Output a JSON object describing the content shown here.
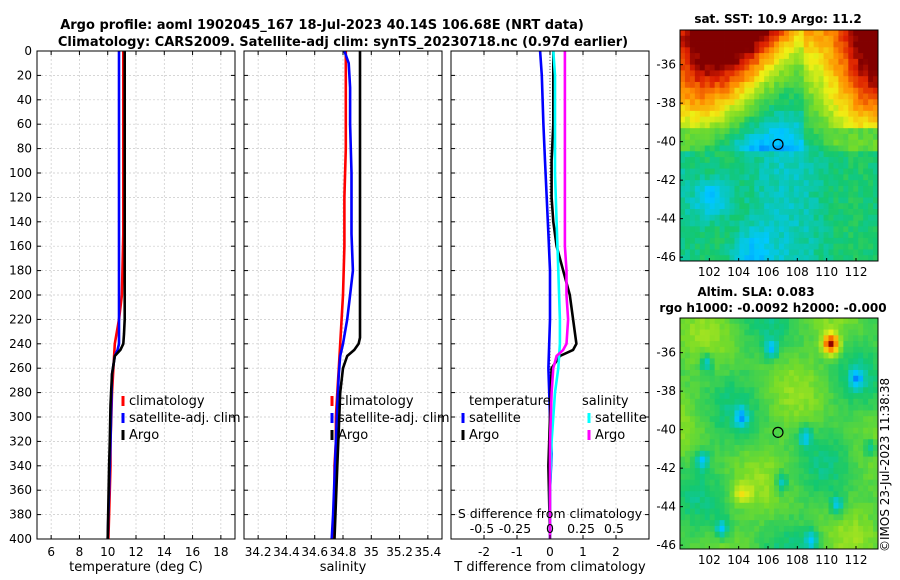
{
  "title_line1": "Argo profile: aoml 1902045_167 18-Jul-2023 40.14S 106.68E (NRT data)",
  "title_line2": "Climatology: CARS2009. Satellite-adj clim: synTS_20230718.nc (0.97d earlier)",
  "credit": "©IMOS 23-Jul-2023 11:38:38",
  "chart_data": [
    {
      "type": "line",
      "name": "temperature-profile",
      "xlabel": "temperature (deg C)",
      "xlim": [
        5,
        19
      ],
      "xticks": [
        6,
        8,
        10,
        12,
        14,
        16,
        18
      ],
      "xtick_labels": [
        "6",
        "8",
        "10",
        "12",
        "14",
        "16",
        "18"
      ],
      "ylim": [
        0,
        400
      ],
      "yticks": [
        0,
        20,
        40,
        60,
        80,
        100,
        120,
        140,
        160,
        180,
        200,
        220,
        240,
        260,
        280,
        300,
        320,
        340,
        360,
        380,
        400
      ],
      "ytick_labels": [
        "0",
        "20",
        "40",
        "60",
        "80",
        "100",
        "120",
        "140",
        "160",
        "180",
        "200",
        "220",
        "240",
        "260",
        "280",
        "300",
        "320",
        "340",
        "360",
        "380",
        "400"
      ],
      "y_reversed": true,
      "legend": [
        "climatology",
        "satellite-adj. clim",
        "Argo"
      ],
      "series": [
        {
          "name": "climatology",
          "color": "#ff0000",
          "x": [
            11.1,
            11.1,
            11.1,
            11.1,
            11.05,
            11.0,
            10.8,
            10.5,
            10.4,
            10.3,
            10.25,
            10.2,
            10.2,
            10.15,
            10.1,
            10.05
          ],
          "y": [
            0,
            50,
            100,
            150,
            175,
            200,
            220,
            240,
            260,
            280,
            300,
            320,
            340,
            360,
            380,
            400
          ]
        },
        {
          "name": "satellite-adj. clim",
          "color": "#0000ff",
          "x": [
            10.8,
            10.8,
            10.8,
            10.8,
            10.8,
            10.8,
            10.8,
            10.8,
            10.7,
            10.5,
            10.3,
            10.25,
            10.2,
            10.15,
            10.1,
            10.05,
            10.0
          ],
          "y": [
            0,
            50,
            100,
            150,
            180,
            200,
            220,
            240,
            245,
            250,
            265,
            290,
            320,
            340,
            360,
            380,
            400
          ]
        },
        {
          "name": "Argo",
          "color": "#000000",
          "x": [
            11.2,
            11.2,
            11.2,
            11.2,
            11.2,
            11.2,
            11.2,
            11.15,
            11.1,
            10.9,
            10.5,
            10.3,
            10.2,
            10.15,
            10.1,
            10.05,
            10.0
          ],
          "y": [
            0,
            50,
            100,
            150,
            180,
            200,
            220,
            232,
            240,
            245,
            250,
            265,
            290,
            320,
            340,
            370,
            400
          ]
        }
      ]
    },
    {
      "type": "line",
      "name": "salinity-profile",
      "xlabel": "salinity",
      "xlim": [
        34.1,
        35.5
      ],
      "xticks": [
        34.2,
        34.4,
        34.6,
        34.8,
        35.0,
        35.2,
        35.4
      ],
      "xtick_labels": [
        "34.2",
        "34.4",
        "34.6",
        "34.8",
        "35",
        "35.2",
        "35.4"
      ],
      "ylim": [
        0,
        400
      ],
      "y_reversed": true,
      "legend": [
        "climatology",
        "satellite-adj. clim",
        "Argo"
      ],
      "series": [
        {
          "name": "climatology",
          "color": "#ff0000",
          "x": [
            34.82,
            34.82,
            34.82,
            34.81,
            34.81,
            34.8,
            34.79,
            34.78,
            34.77,
            34.76,
            34.75,
            34.75,
            34.74,
            34.74,
            34.73
          ],
          "y": [
            0,
            40,
            80,
            120,
            160,
            200,
            220,
            240,
            260,
            280,
            300,
            320,
            340,
            360,
            400
          ]
        },
        {
          "name": "satellite-adj. clim",
          "color": "#0000ff",
          "x": [
            34.81,
            34.84,
            34.85,
            34.85,
            34.86,
            34.86,
            34.87,
            34.85,
            34.83,
            34.8,
            34.78,
            34.77,
            34.76,
            34.75,
            34.74,
            34.73,
            34.72
          ],
          "y": [
            0,
            10,
            30,
            60,
            100,
            150,
            180,
            200,
            220,
            240,
            250,
            265,
            290,
            320,
            350,
            380,
            400
          ]
        },
        {
          "name": "Argo",
          "color": "#000000",
          "x": [
            34.92,
            34.92,
            34.92,
            34.92,
            34.92,
            34.92,
            34.92,
            34.91,
            34.88,
            34.83,
            34.8,
            34.78,
            34.77,
            34.76,
            34.75,
            34.74
          ],
          "y": [
            0,
            50,
            100,
            150,
            200,
            220,
            235,
            240,
            245,
            250,
            260,
            280,
            310,
            340,
            370,
            400
          ]
        }
      ]
    },
    {
      "type": "line",
      "name": "difference-profile",
      "xlabel": "T difference from climatology",
      "xlabel_top": "S difference from climatology",
      "xlim": [
        -3,
        3
      ],
      "xticks": [
        -2,
        -1,
        0,
        1,
        2
      ],
      "xtick_labels": [
        "-2",
        "-1",
        "0",
        "1",
        "2"
      ],
      "top_ticks": [
        "-0.5",
        "-0.25",
        "0",
        "0.25",
        "0.5"
      ],
      "top_tick_values": [
        -2,
        -1,
        0,
        1,
        2
      ],
      "ylim": [
        0,
        400
      ],
      "y_reversed": true,
      "legend_temperature_title": "temperature",
      "legend_salinity_title": "salinity",
      "legend": [
        "satellite",
        "Argo",
        "satellite",
        "Argo"
      ],
      "series": [
        {
          "name": "T satellite",
          "color": "#0000ff",
          "x": [
            -0.3,
            -0.25,
            -0.2,
            -0.15,
            -0.1,
            -0.05,
            0,
            0,
            -0.05,
            0,
            0.05,
            0,
            0
          ],
          "y": [
            0,
            20,
            60,
            90,
            120,
            150,
            180,
            220,
            260,
            300,
            330,
            360,
            400
          ]
        },
        {
          "name": "T Argo",
          "color": "#000000",
          "x": [
            0.1,
            0.1,
            0.1,
            0.05,
            0.05,
            0.1,
            0.2,
            0.4,
            0.6,
            0.7,
            0.8,
            0.7,
            0.3,
            0.05,
            0,
            -0.05,
            0
          ],
          "y": [
            0,
            30,
            60,
            90,
            120,
            140,
            160,
            180,
            200,
            220,
            240,
            245,
            250,
            260,
            300,
            340,
            400
          ]
        },
        {
          "name": "S satellite",
          "color": "#00ffff",
          "x": [
            0.1,
            0.15,
            0.15,
            0.15,
            0.2,
            0.25,
            0.3,
            0.3,
            0.25,
            0.15,
            0.05,
            0,
            0
          ],
          "y": [
            0,
            20,
            60,
            100,
            140,
            180,
            220,
            240,
            260,
            280,
            320,
            360,
            400
          ]
        },
        {
          "name": "S Argo",
          "color": "#ff00ff",
          "x": [
            0.45,
            0.45,
            0.45,
            0.45,
            0.45,
            0.5,
            0.5,
            0.55,
            0.5,
            0.4,
            0.2,
            0.1,
            0.05,
            0,
            0
          ],
          "y": [
            0,
            40,
            80,
            120,
            160,
            180,
            200,
            220,
            240,
            245,
            250,
            260,
            280,
            320,
            400
          ]
        }
      ]
    },
    {
      "type": "heatmap",
      "name": "sst-map",
      "title": "sat. SST: 10.9 Argo: 11.2",
      "xticks": [
        "102",
        "104",
        "106",
        "108",
        "110",
        "112"
      ],
      "yticks": [
        "-36",
        "-38",
        "-40",
        "-42",
        "-44",
        "-46"
      ],
      "xlim": [
        100,
        113.5
      ],
      "ylim": [
        -46.2,
        -34.2
      ],
      "marker": {
        "lon": 106.68,
        "lat": -40.14
      }
    },
    {
      "type": "heatmap",
      "name": "sla-map",
      "title_line1": "Altim. SLA: 0.083",
      "title_line2": "rgo h1000: -0.0092 h2000: -0.000",
      "xticks": [
        "102",
        "104",
        "106",
        "108",
        "110",
        "112"
      ],
      "yticks": [
        "-36",
        "-38",
        "-40",
        "-42",
        "-44",
        "-46"
      ],
      "xlim": [
        100,
        113.5
      ],
      "ylim": [
        -46.2,
        -34.2
      ],
      "marker": {
        "lon": 106.68,
        "lat": -40.14
      }
    }
  ]
}
